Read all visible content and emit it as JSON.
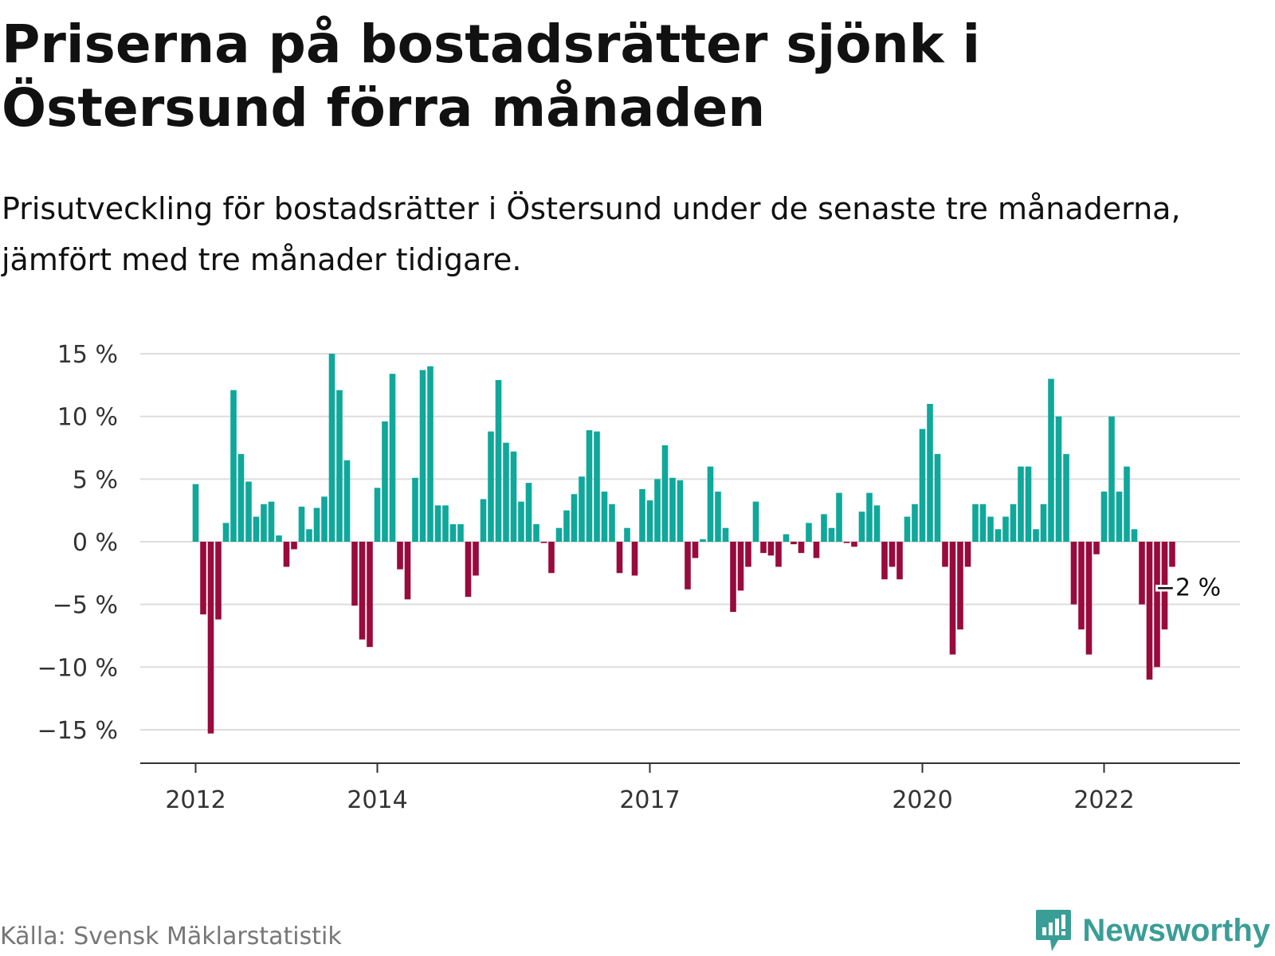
{
  "header": {
    "title": "Priserna på bostadsrätter sjönk i Östersund förra månaden",
    "subtitle": "Prisutveckling för bostadsrätter i Östersund under de senaste tre månaderna, jämfört med tre månader tidigare."
  },
  "footer": {
    "source": "Källa: Svensk Mäklarstatistik",
    "brand": "Newsworthy",
    "brand_icon": "newsworthy-logo-icon"
  },
  "colors": {
    "positive": "#0fa89b",
    "negative": "#990a3d",
    "grid": "#dddddd",
    "axis": "#333333",
    "brand": "#3a9e96"
  },
  "chart_data": {
    "type": "bar",
    "title": "Priserna på bostadsrätter sjönk i Östersund förra månaden",
    "xlabel": "",
    "ylabel": "",
    "ylim": [
      -17,
      15.5
    ],
    "yticks": [
      15,
      10,
      5,
      0,
      -5,
      -10,
      -15
    ],
    "ytick_labels": [
      "15 %",
      "10 %",
      "5 %",
      "0 %",
      "−5 %",
      "−10 %",
      "−15 %"
    ],
    "xticks": [
      {
        "label": "2012",
        "index": 0
      },
      {
        "label": "2014",
        "index": 24
      },
      {
        "label": "2017",
        "index": 60
      },
      {
        "label": "2020",
        "index": 96
      },
      {
        "label": "2022",
        "index": 120
      }
    ],
    "grid": true,
    "unit": "%",
    "end_label": "−2 %",
    "values": [
      4.6,
      -5.8,
      -15.3,
      -6.2,
      1.5,
      12.1,
      7.0,
      4.8,
      2.0,
      3.0,
      3.2,
      0.5,
      -2.0,
      -0.6,
      2.8,
      1.0,
      2.7,
      3.6,
      15.0,
      12.1,
      6.5,
      -5.1,
      -7.8,
      -8.4,
      4.3,
      9.6,
      13.4,
      -2.2,
      -4.6,
      5.1,
      13.7,
      14.0,
      2.9,
      2.9,
      1.4,
      1.4,
      -4.4,
      -2.7,
      3.4,
      8.8,
      12.9,
      7.9,
      7.2,
      3.2,
      4.7,
      1.4,
      -0.1,
      -2.5,
      1.1,
      2.5,
      3.8,
      5.2,
      8.9,
      8.8,
      4.0,
      3.0,
      -2.5,
      1.1,
      -2.7,
      4.2,
      3.3,
      5.0,
      7.7,
      5.1,
      4.9,
      -3.8,
      -1.3,
      0.2,
      6.0,
      4.0,
      1.1,
      -5.6,
      -3.9,
      -2.0,
      3.2,
      -0.9,
      -1.1,
      -2.0,
      0.6,
      -0.2,
      -0.9,
      1.5,
      -1.3,
      2.2,
      1.1,
      3.9,
      -0.1,
      -0.4,
      2.4,
      3.9,
      2.9,
      -3.0,
      -2.0,
      -3.0,
      2.0,
      3.0,
      9.0,
      11.0,
      7.0,
      -2.0,
      -9.0,
      -7.0,
      -2.0,
      3.0,
      3.0,
      2.0,
      1.0,
      2.0,
      3.0,
      6.0,
      6.0,
      1.0,
      3.0,
      13.0,
      10.0,
      7.0,
      -5.0,
      -7.0,
      -9.0,
      -1.0,
      4.0,
      10.0,
      4.0,
      6.0,
      1.0,
      -5.0,
      -11.0,
      -10.0,
      -7.0,
      -2.0
    ]
  }
}
